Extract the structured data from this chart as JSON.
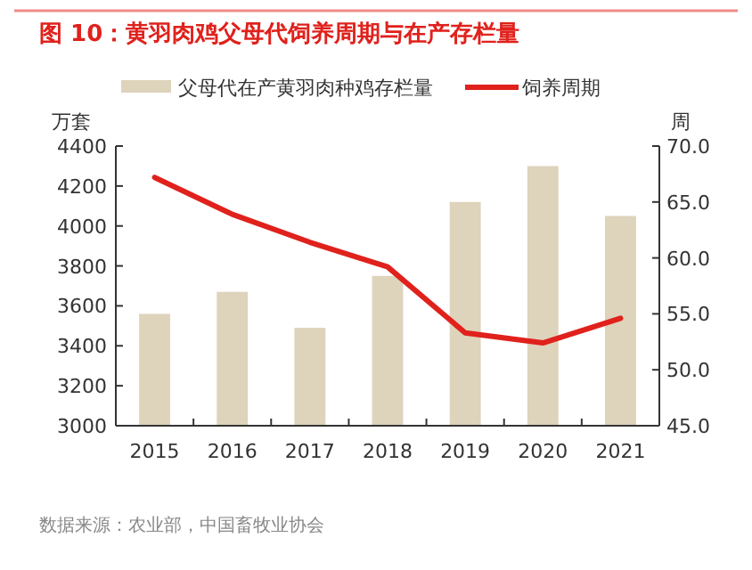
{
  "chart_data": {
    "type": "bar",
    "title": "图 10：黄羽肉鸡父母代饲养周期与在产存栏量",
    "ylabel": "万套",
    "y2label": "周",
    "categories": [
      "2015",
      "2016",
      "2017",
      "2018",
      "2019",
      "2020",
      "2021"
    ],
    "series": [
      {
        "name": "父母代在产黄羽肉种鸡存栏量",
        "color": "#ded3bb",
        "values": [
          3560,
          3670,
          3490,
          3750,
          4120,
          4300,
          4050
        ]
      },
      {
        "name": "饲养周期",
        "type": "line",
        "axis": "y2",
        "color": "#e0211c",
        "values": [
          67.2,
          63.9,
          61.4,
          59.2,
          53.3,
          52.4,
          54.6
        ]
      }
    ],
    "ylim": [
      3000,
      4400
    ],
    "yticks": [
      3000,
      3200,
      3400,
      3600,
      3800,
      4000,
      4200,
      4400
    ],
    "y2lim": [
      45,
      70
    ],
    "y2ticks": [
      {
        "value": 45,
        "label": "45.0"
      },
      {
        "value": 50,
        "label": "50.0"
      },
      {
        "value": 55,
        "label": "55.0"
      },
      {
        "value": 60,
        "label": "60.0"
      },
      {
        "value": 65,
        "label": "65.0"
      },
      {
        "value": 70,
        "label": "70.0"
      }
    ],
    "legend": "top",
    "grid": false,
    "annotations": [
      "数据来源：农业部，中国畜牧业协会"
    ]
  }
}
